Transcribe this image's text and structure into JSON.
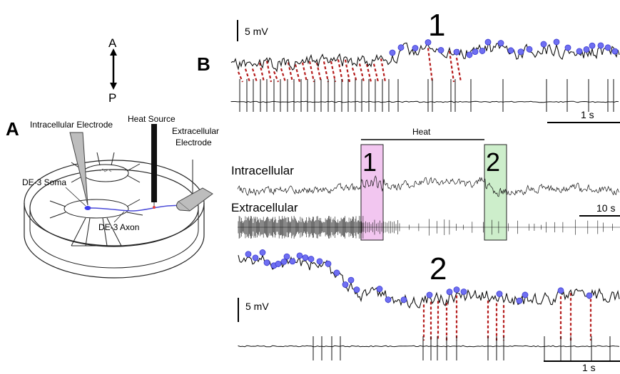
{
  "panel_a": {
    "letter": "A",
    "orientation": {
      "anterior": "A",
      "posterior": "P"
    },
    "labels": {
      "intracellular_electrode": "Intracellular Electrode",
      "heat_source": "Heat Source",
      "extracellular_electrode_line1": "Extracellular",
      "extracellular_electrode_line2": "Electrode",
      "soma": "DE-3 Soma",
      "axon": "DE-3 Axon"
    }
  },
  "panel_b": {
    "letter": "B",
    "overview": {
      "intracellular_label": "Intracellular",
      "extracellular_label": "Extracellular",
      "heat_label": "Heat",
      "scale_label": "10 s",
      "window_1_label": "1",
      "window_2_label": "2"
    },
    "inset_1": {
      "number": "1",
      "voltage_scale": "5 mV",
      "time_scale": "1 s"
    },
    "inset_2": {
      "number": "2",
      "voltage_scale": "5 mV",
      "time_scale": "1 s"
    }
  },
  "colors": {
    "trace": "#111111",
    "event_marker": "#6f6ff2",
    "event_marker_stroke": "#3a3ad0",
    "spike_link": "#b51c1c",
    "window_1_fill": "#f2c6f0",
    "window_2_fill": "#cdeecb",
    "axon": "#4a4ad8",
    "soma": "#3b3bf0",
    "heat_tip": "#e04040"
  }
}
